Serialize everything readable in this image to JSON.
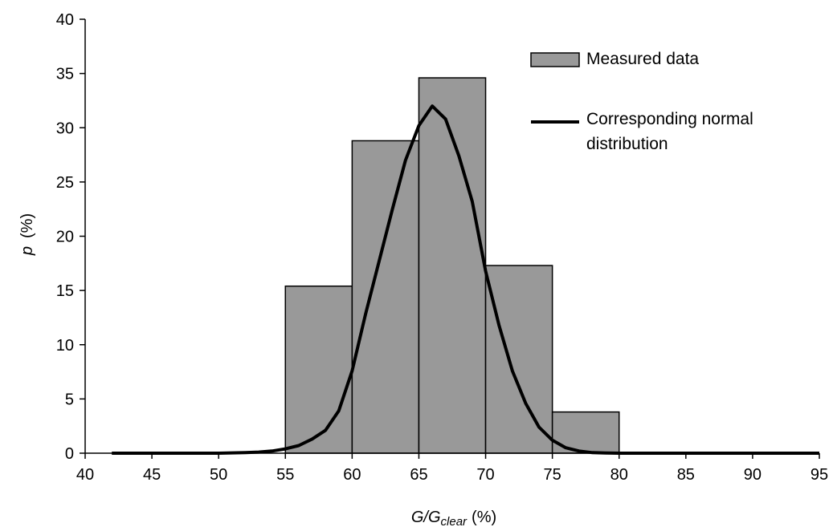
{
  "chart_data": {
    "type": "bar",
    "title": "",
    "xlabel": {
      "main": "G/G",
      "sub": "clear",
      "unit": "(%)"
    },
    "ylabel": {
      "main": "p",
      "unit": "(%)"
    },
    "xlim": [
      40,
      95
    ],
    "ylim": [
      0,
      40
    ],
    "xticks": [
      "40",
      "45",
      "50",
      "55",
      "60",
      "65",
      "70",
      "75",
      "80",
      "85",
      "90",
      "95"
    ],
    "yticks": [
      "0",
      "5",
      "10",
      "15",
      "20",
      "25",
      "30",
      "35",
      "40"
    ],
    "grid": false,
    "legend_position": "top-right",
    "series": [
      {
        "name": "Measured data",
        "kind": "histogram",
        "color": "#999999",
        "bins": [
          {
            "from": 55,
            "to": 60,
            "value": 15.4
          },
          {
            "from": 60,
            "to": 65,
            "value": 28.8
          },
          {
            "from": 65,
            "to": 70,
            "value": 34.6
          },
          {
            "from": 70,
            "to": 75,
            "value": 17.3
          },
          {
            "from": 75,
            "to": 80,
            "value": 3.8
          }
        ]
      },
      {
        "name": "Corresponding normal distribution",
        "label_lines": [
          "Corresponding normal",
          "distribution"
        ],
        "kind": "line",
        "color": "#000000",
        "x": [
          42,
          44,
          46,
          48,
          50,
          52,
          53,
          54,
          55,
          56,
          57,
          58,
          59,
          60,
          61,
          62,
          63,
          64,
          65,
          66,
          67,
          68,
          69,
          70,
          71,
          72,
          73,
          74,
          75,
          76,
          77,
          78,
          79,
          80,
          82,
          85,
          88,
          91,
          95
        ],
        "y": [
          0,
          0,
          0,
          0,
          0,
          0.05,
          0.1,
          0.2,
          0.4,
          0.7,
          1.3,
          2.1,
          3.9,
          7.6,
          12.8,
          17.6,
          22.4,
          27.0,
          30.2,
          32.0,
          30.8,
          27.4,
          23.2,
          16.8,
          11.8,
          7.6,
          4.6,
          2.4,
          1.2,
          0.5,
          0.2,
          0.05,
          0.02,
          0,
          0,
          0,
          0,
          0,
          0
        ]
      }
    ]
  }
}
